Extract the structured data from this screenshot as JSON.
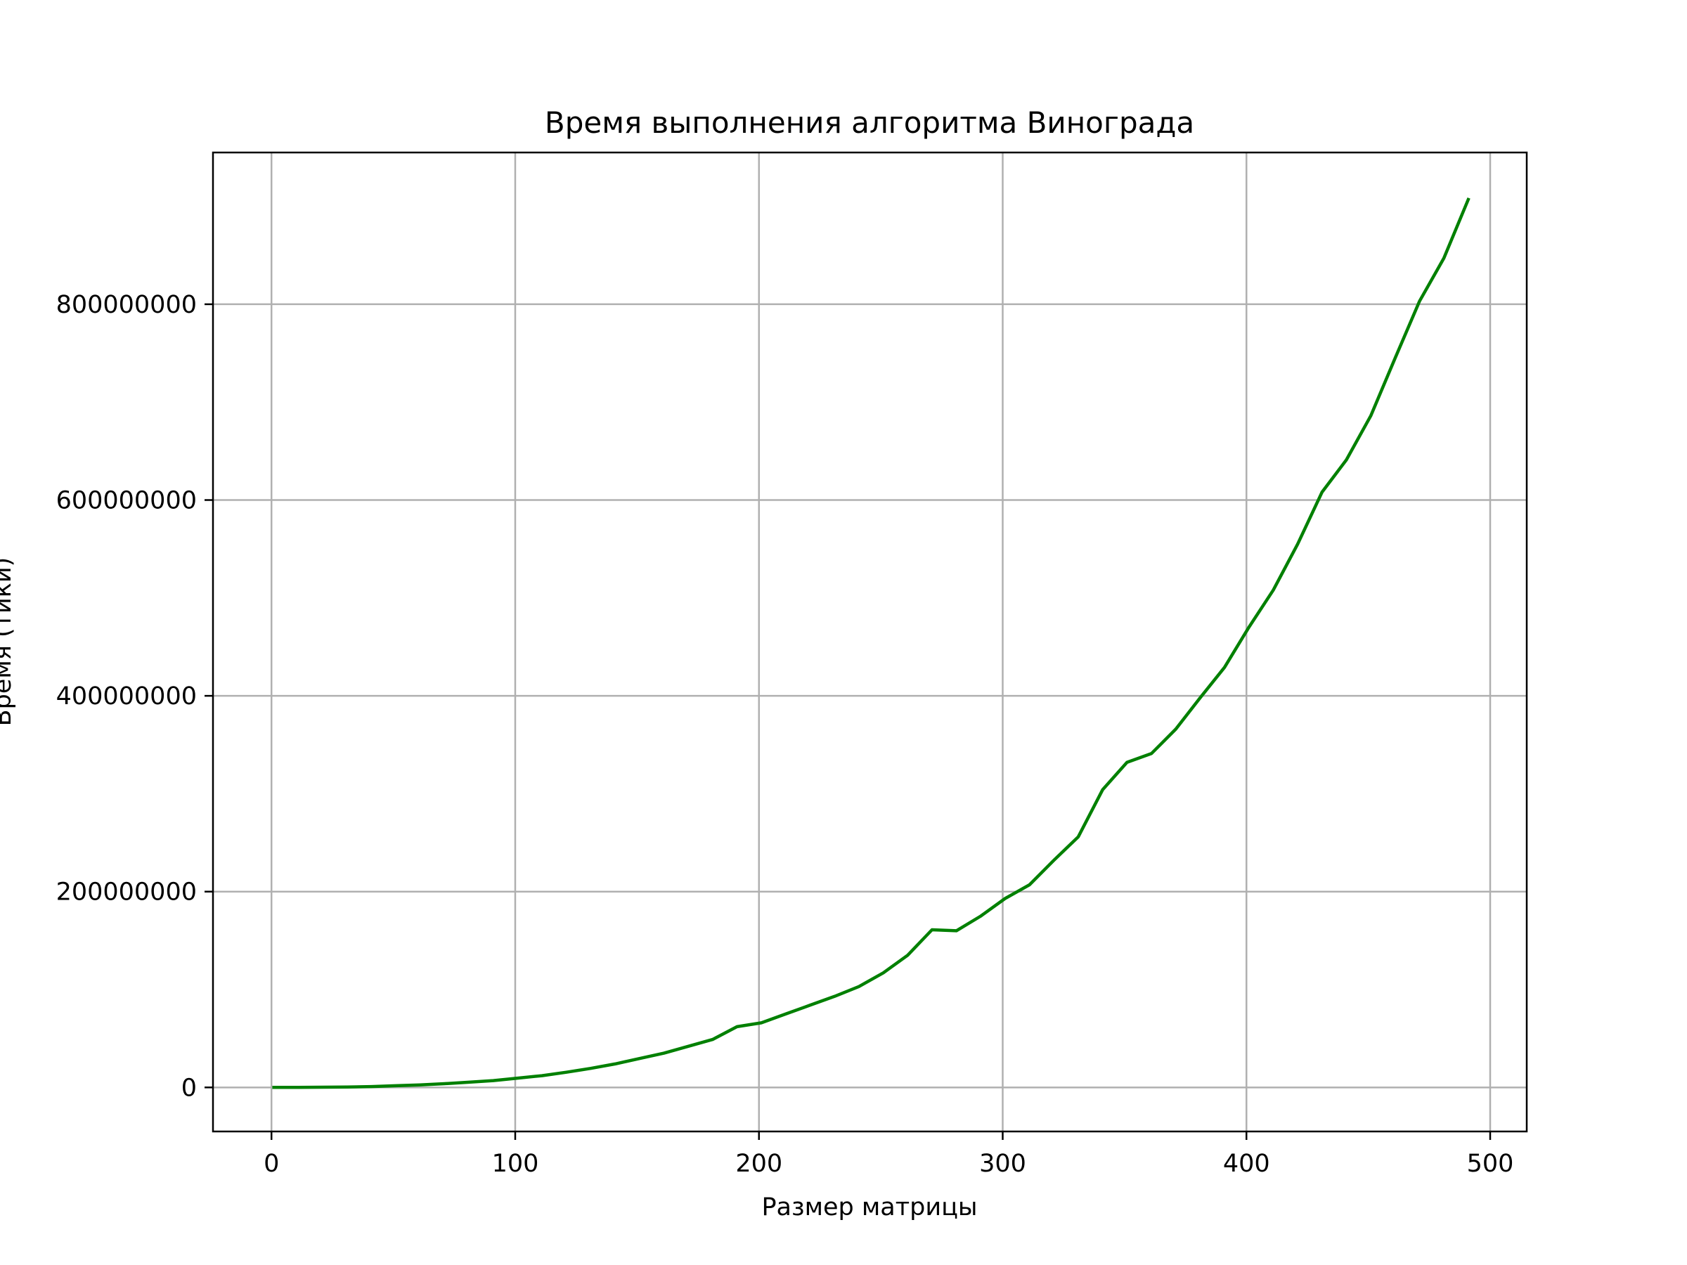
{
  "chart_data": {
    "type": "line",
    "title": "Время выполнения алгоритма Винограда",
    "xlabel": "Размер матрицы",
    "ylabel": "Время (тики)",
    "xlim": [
      -24,
      515
    ],
    "ylim": [
      -45000000,
      955000000
    ],
    "x_ticks": [
      0,
      100,
      200,
      300,
      400,
      500
    ],
    "x_tick_labels": [
      "0",
      "100",
      "200",
      "300",
      "400",
      "500"
    ],
    "y_ticks": [
      0,
      200000000,
      400000000,
      600000000,
      800000000
    ],
    "y_tick_labels": [
      "0",
      "200000000",
      "400000000",
      "600000000",
      "800000000"
    ],
    "grid": true,
    "legend": "none",
    "series": [
      {
        "color": "#008000",
        "x": [
          1,
          11,
          21,
          31,
          41,
          51,
          61,
          71,
          81,
          91,
          101,
          111,
          121,
          131,
          141,
          151,
          161,
          171,
          181,
          191,
          201,
          211,
          221,
          231,
          241,
          251,
          261,
          271,
          281,
          291,
          301,
          311,
          321,
          331,
          341,
          351,
          361,
          371,
          381,
          391,
          401,
          411,
          421,
          431,
          441,
          451,
          461,
          471,
          481,
          491
        ],
        "y": [
          0,
          0,
          200000,
          400000,
          900000,
          1700000,
          2600000,
          3800000,
          5300000,
          7000000,
          9500000,
          12000000,
          15500000,
          19500000,
          24000000,
          29500000,
          35000000,
          42000000,
          49000000,
          62000000,
          66000000,
          75000000,
          84000000,
          93000000,
          103000000,
          117000000,
          135000000,
          161000000,
          160000000,
          175000000,
          193000000,
          207000000,
          232000000,
          256000000,
          304000000,
          332000000,
          341000000,
          366000000,
          398000000,
          429000000,
          470000000,
          508000000,
          555000000,
          608000000,
          641000000,
          686000000,
          745000000,
          803000000,
          847000000,
          907000000
        ]
      }
    ]
  }
}
